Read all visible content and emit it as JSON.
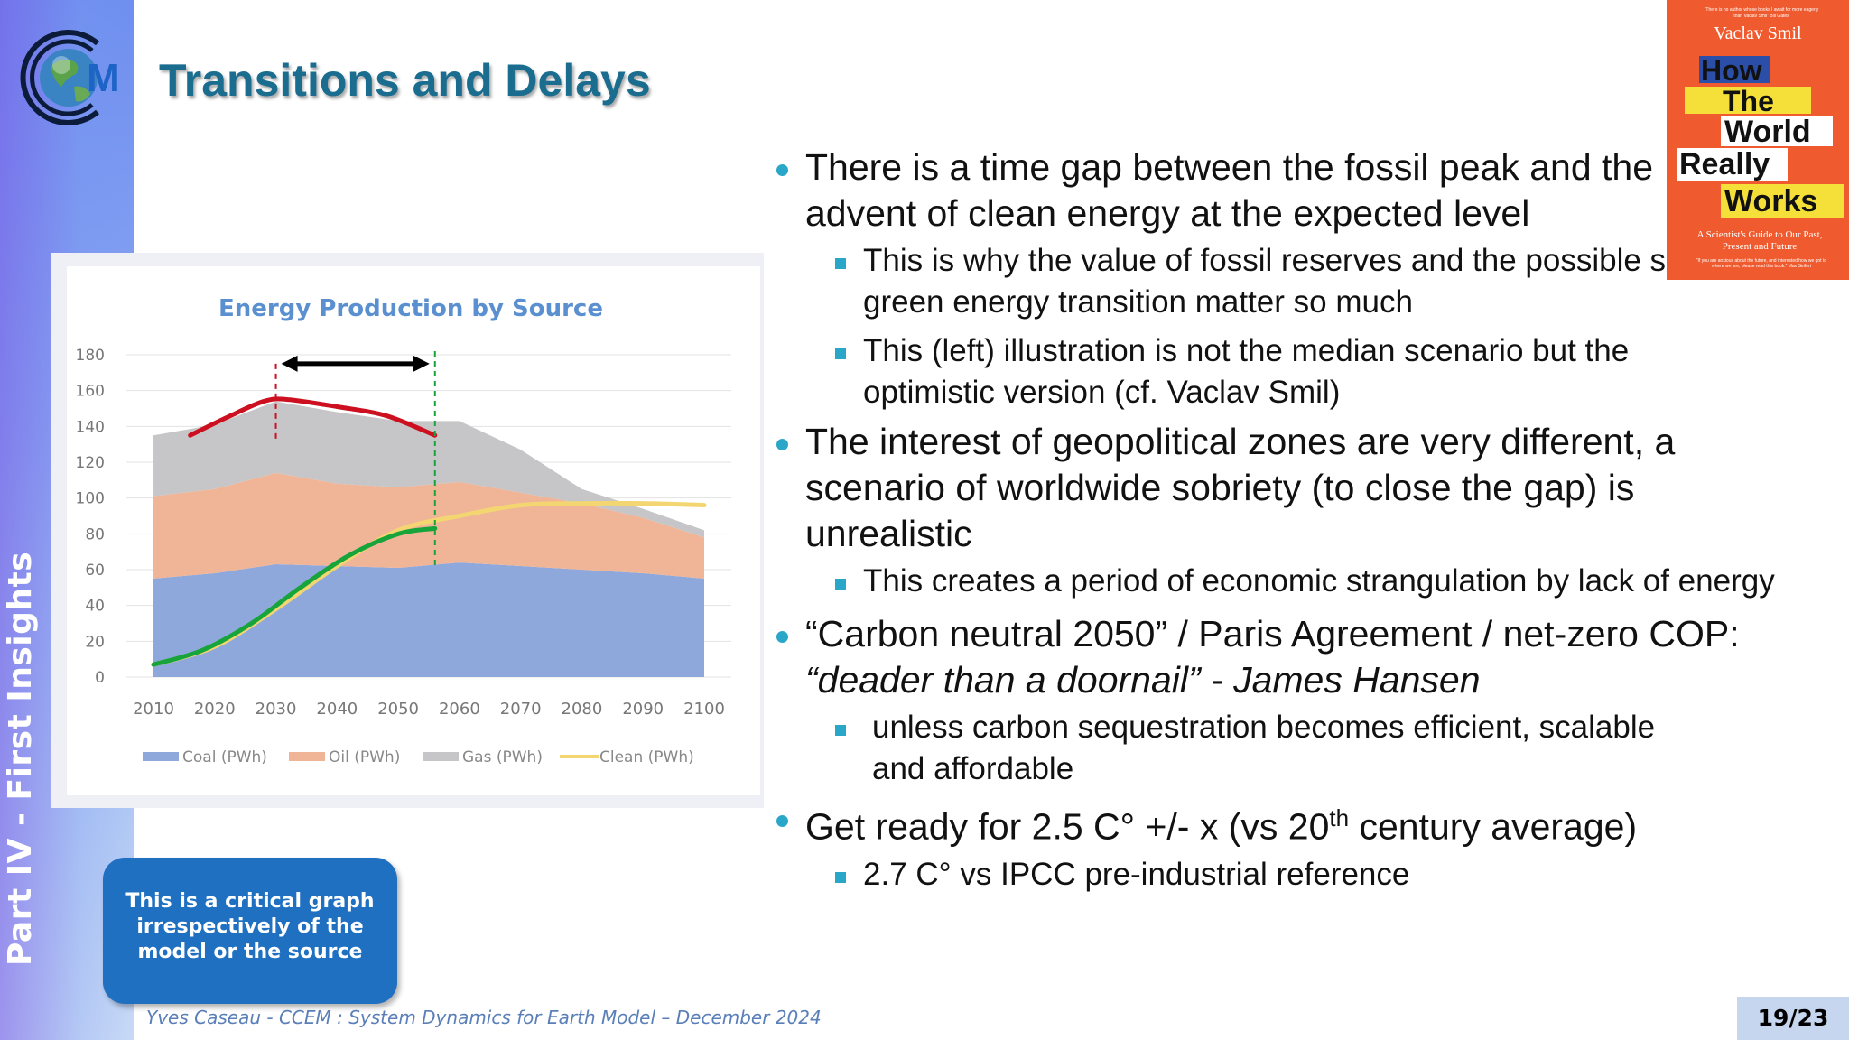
{
  "side_label": "Part IV  - First Insights",
  "logo": {
    "letter": "M",
    "icon": "globe-logo"
  },
  "title": "Transitions and Delays",
  "chart_data": {
    "type": "area",
    "title": "Energy Production by Source",
    "stacked": true,
    "x": [
      2010,
      2020,
      2030,
      2040,
      2050,
      2060,
      2070,
      2080,
      2090,
      2100
    ],
    "x_ticks": [
      "2010",
      "2020",
      "2030",
      "2040",
      "2050",
      "2060",
      "2070",
      "2080",
      "2090",
      "2100"
    ],
    "ylim": [
      0,
      180
    ],
    "y_ticks": [
      "180",
      "160",
      "140",
      "120",
      "100",
      "80",
      "60",
      "40",
      "20",
      "0"
    ],
    "grid": true,
    "legend_position": "bottom",
    "series": [
      {
        "name": "Coal (PWh)",
        "kind": "area",
        "color": "#8fa8dc",
        "values": [
          55,
          58,
          63,
          62,
          61,
          64,
          62,
          60,
          58,
          55
        ]
      },
      {
        "name": "Oil (PWh)",
        "kind": "area",
        "color": "#f0b496",
        "values": [
          46,
          47,
          51,
          46,
          45,
          45,
          41,
          37,
          31,
          23
        ]
      },
      {
        "name": "Gas (PWh)",
        "kind": "area",
        "color": "#c6c6c8",
        "values": [
          34,
          36,
          40,
          40,
          37,
          34,
          24,
          8,
          5,
          4
        ]
      },
      {
        "name": "Clean (PWh)",
        "kind": "line",
        "color": "#f3d672",
        "values": [
          7,
          17,
          38,
          62,
          82,
          90,
          96,
          97,
          97,
          96
        ]
      }
    ],
    "overlays": [
      {
        "kind": "line",
        "color": "#cc1020",
        "x": [
          2016,
          2022,
          2028,
          2032,
          2040,
          2048,
          2056
        ],
        "values": [
          135,
          145,
          154,
          155,
          151,
          146,
          135
        ]
      },
      {
        "kind": "line",
        "color": "#17a43a",
        "x": [
          2010,
          2018,
          2026,
          2034,
          2042,
          2050,
          2056
        ],
        "values": [
          7,
          15,
          30,
          50,
          68,
          80,
          83
        ]
      },
      {
        "kind": "vline",
        "color": "#cc1020",
        "x": 2030
      },
      {
        "kind": "vline",
        "color": "#17a43a",
        "x": 2056
      },
      {
        "kind": "arrow",
        "color": "#000000",
        "x_from": 2030,
        "x_to": 2056,
        "y": 175
      }
    ]
  },
  "callout": "This is a critical graph irrespectively of the model or the source",
  "bullets": [
    {
      "text": "There is a time gap between the fossil peak and the advent of clean energy at the expected level",
      "sub": [
        "This is why the value of fossil reserves and the possible speed  of green energy transition matter so much",
        "This (left) illustration is not the median scenario but the optimistic version (cf. Vaclav Smil)"
      ]
    },
    {
      "text": "The interest of geopolitical zones are very different, a scenario of worldwide sobriety (to close the gap) is unrealistic",
      "sub": [
        "This creates a period of economic strangulation by lack of energy"
      ]
    },
    {
      "text_a": "“Carbon neutral 2050” / Paris Agreement / net-zero COP:",
      "text_b": "“deader than a doornail” - James Hansen",
      "sub": [
        "unless carbon sequestration becomes efficient, scalable and affordable"
      ]
    },
    {
      "text_pre": "Get ready for 2.5 C° +/- x (vs 20",
      "text_sup": "th",
      "text_post": " century average)",
      "sub": [
        "2.7 C° vs IPCC pre-industrial reference"
      ]
    }
  ],
  "book": {
    "blurb": "“There is no author whose books I await for more eagerly than Vaclav Smil” Bill Gates",
    "author": "Vaclav Smil",
    "title_words": [
      "How",
      "The",
      "World",
      "Really",
      "Works"
    ],
    "subtitle": "A Scientist's Guide to Our Past, Present and Future",
    "quote": "“If you are anxious about the future, and interested how we got to where we are, please read this book.” Max Seifert"
  },
  "footer": "Yves Caseau  - CCEM : System Dynamics for Earth Model – December 2024",
  "page": "19/23"
}
